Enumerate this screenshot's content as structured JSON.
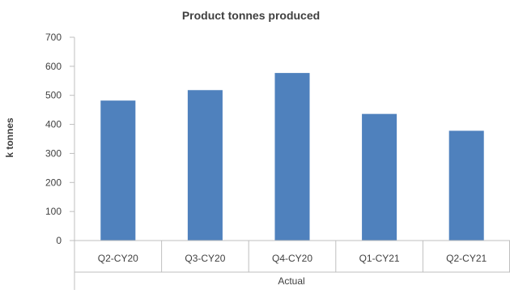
{
  "chart_data": {
    "type": "bar",
    "title": "Product tonnes produced",
    "ylabel": "k tonnes",
    "xlabel": "",
    "x_group_label": "Actual",
    "categories": [
      "Q2-CY20",
      "Q3-CY20",
      "Q4-CY20",
      "Q1-CY21",
      "Q2-CY21"
    ],
    "values": [
      482,
      518,
      577,
      436,
      378
    ],
    "ylim": [
      0,
      700
    ],
    "yticks": [
      0,
      100,
      200,
      300,
      400,
      500,
      600,
      700
    ],
    "grid": false,
    "legend": "none",
    "bar_color": "#4F81BD"
  }
}
